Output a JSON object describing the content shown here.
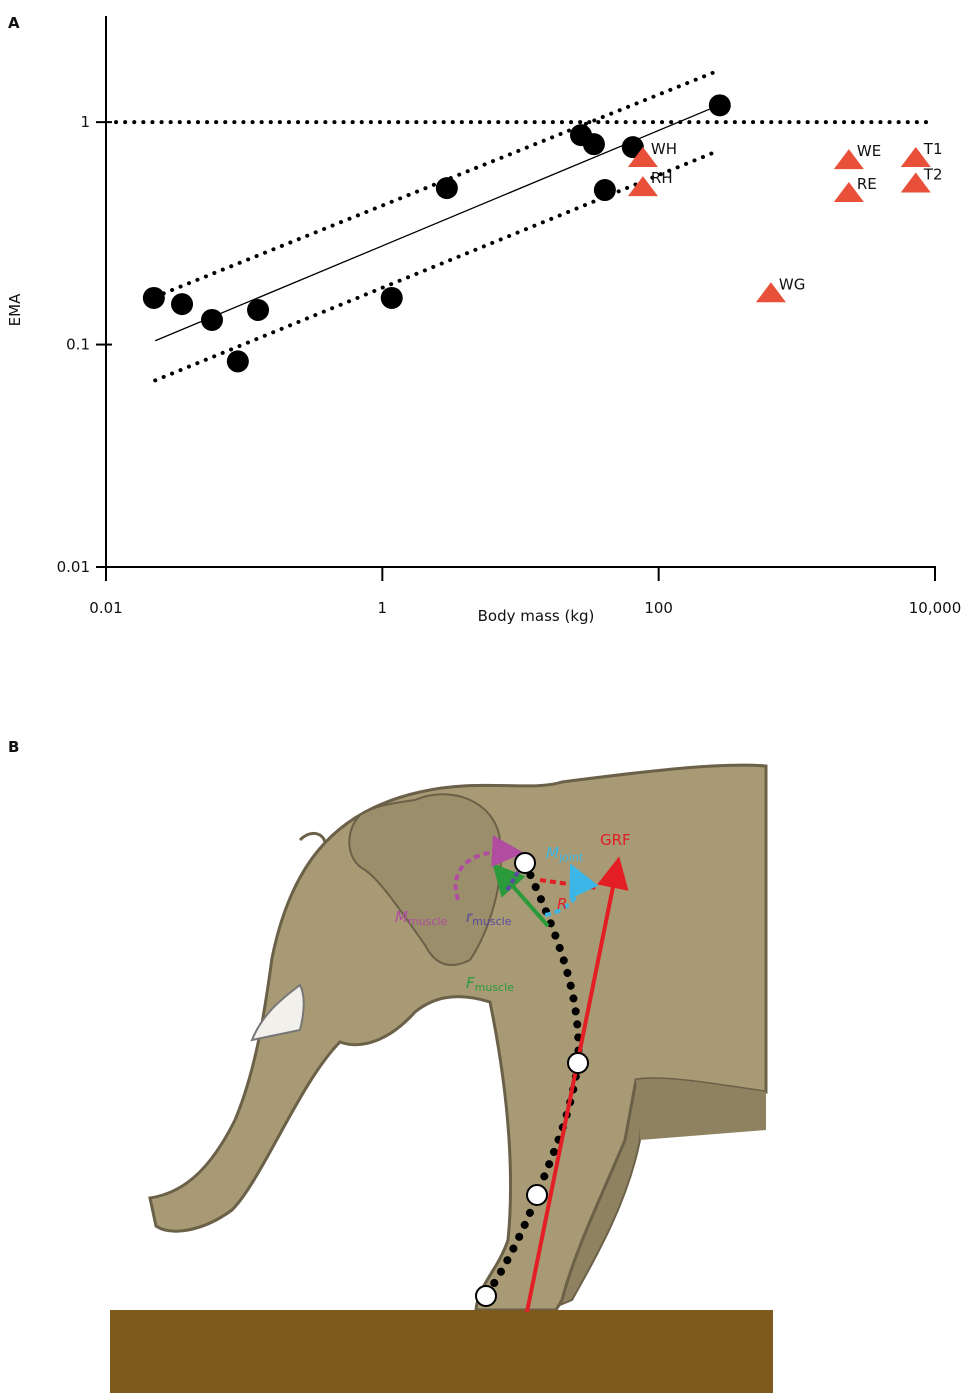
{
  "chart_data": {
    "type": "scatter",
    "title": "A",
    "x_label": "Body mass (kg)",
    "y_label": "EMA",
    "xscale": "log",
    "yscale": "log",
    "xlim": [
      0.01,
      10000
    ],
    "ylim": [
      0.01,
      3
    ],
    "xticks": [
      0.01,
      1,
      100,
      {
        "value": 10000,
        "label": "10,000"
      }
    ],
    "yticks": [
      0.01,
      0.1,
      1
    ],
    "series": [
      {
        "color": "#000000",
        "marker": "circle",
        "x": [
          0.0222,
          0.0355,
          0.0585,
          0.09,
          0.126,
          1.17,
          2.93,
          27.4,
          34,
          40.8,
          65,
          277
        ],
        "values": [
          0.162,
          0.152,
          0.129,
          0.084,
          0.143,
          0.162,
          0.505,
          0.874,
          0.796,
          0.495,
          0.772,
          1.19
        ]
      },
      {
        "color": "#e8503a",
        "marker": "triangle",
        "x": [
          76.9,
          76.9,
          649,
          2380,
          2380,
          7260,
          7260
        ],
        "values": [
          0.69,
          0.51,
          0.17,
          0.675,
          0.48,
          0.69,
          0.53
        ],
        "point_labels": [
          "WH",
          "RH",
          "WG",
          "WE",
          "RE",
          "T1",
          "T2"
        ]
      }
    ],
    "fit_lines": [
      {
        "style": "solid",
        "x": [
          0.0227,
          255
        ],
        "values": [
          0.104,
          1.17
        ]
      },
      {
        "style": "dotted",
        "x": [
          0.0227,
          255
        ],
        "values": [
          0.164,
          1.68
        ]
      },
      {
        "style": "dotted",
        "x": [
          0.0227,
          255
        ],
        "values": [
          0.069,
          0.733
        ]
      }
    ],
    "reference_line": {
      "value": 1,
      "style": "dotted"
    }
  },
  "panel_b": {
    "label": "B",
    "grf": "GRF",
    "m_muscle": {
      "main": "M",
      "sub": "muscle"
    },
    "r_muscle": {
      "main": "r",
      "sub": "muscle"
    },
    "r": "R",
    "f_muscle": {
      "main": "F",
      "sub": "muscle"
    },
    "m_joint": {
      "main": "M",
      "sub": "joint"
    }
  }
}
